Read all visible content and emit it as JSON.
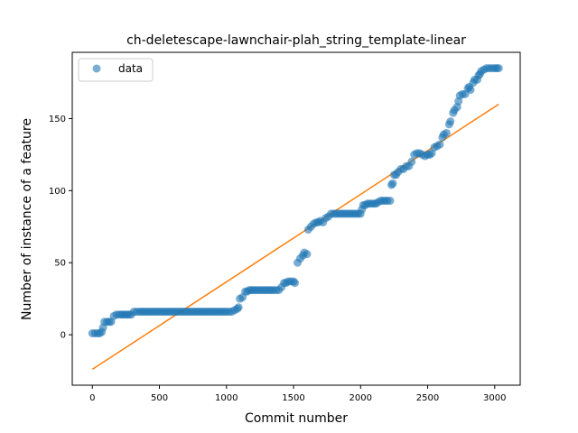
{
  "chart_data": {
    "type": "scatter",
    "title": "ch-deletescape-lawnchair-plah_string_template-linear",
    "xlabel": "Commit number",
    "ylabel": "Number of instance of a feature",
    "xlim": [
      -150,
      3190
    ],
    "ylim": [
      -35,
      196
    ],
    "xticks": [
      0,
      500,
      1000,
      1500,
      2000,
      2500,
      3000
    ],
    "yticks": [
      0,
      50,
      100,
      150
    ],
    "legend": {
      "position": "top-left",
      "entries": [
        "data"
      ]
    },
    "colors": {
      "data": "#1f77b4",
      "fit": "#ff7f0e"
    },
    "series": [
      {
        "name": "data",
        "kind": "scatter",
        "points": [
          [
            0,
            1
          ],
          [
            20,
            1
          ],
          [
            40,
            1
          ],
          [
            55,
            1
          ],
          [
            70,
            2
          ],
          [
            80,
            5
          ],
          [
            90,
            9
          ],
          [
            110,
            9
          ],
          [
            140,
            9
          ],
          [
            160,
            13
          ],
          [
            180,
            14
          ],
          [
            200,
            14
          ],
          [
            230,
            14
          ],
          [
            260,
            14
          ],
          [
            290,
            14
          ],
          [
            310,
            16
          ],
          [
            350,
            16
          ],
          [
            400,
            16
          ],
          [
            450,
            16
          ],
          [
            500,
            16
          ],
          [
            550,
            16
          ],
          [
            600,
            16
          ],
          [
            650,
            16
          ],
          [
            700,
            16
          ],
          [
            750,
            16
          ],
          [
            800,
            16
          ],
          [
            850,
            16
          ],
          [
            900,
            16
          ],
          [
            950,
            16
          ],
          [
            1000,
            16
          ],
          [
            1040,
            16
          ],
          [
            1060,
            17
          ],
          [
            1080,
            18
          ],
          [
            1090,
            19
          ],
          [
            1100,
            25
          ],
          [
            1120,
            26
          ],
          [
            1140,
            30
          ],
          [
            1170,
            31
          ],
          [
            1200,
            31
          ],
          [
            1250,
            31
          ],
          [
            1300,
            31
          ],
          [
            1350,
            31
          ],
          [
            1390,
            31
          ],
          [
            1410,
            33
          ],
          [
            1430,
            36
          ],
          [
            1460,
            37
          ],
          [
            1480,
            37
          ],
          [
            1500,
            37
          ],
          [
            1510,
            36
          ],
          [
            1530,
            50
          ],
          [
            1550,
            53
          ],
          [
            1570,
            55
          ],
          [
            1580,
            57
          ],
          [
            1600,
            56
          ],
          [
            1610,
            73
          ],
          [
            1630,
            75
          ],
          [
            1650,
            77
          ],
          [
            1670,
            78
          ],
          [
            1700,
            79
          ],
          [
            1720,
            78
          ],
          [
            1740,
            81
          ],
          [
            1760,
            82
          ],
          [
            1780,
            84
          ],
          [
            1800,
            84
          ],
          [
            1850,
            84
          ],
          [
            1900,
            84
          ],
          [
            1950,
            84
          ],
          [
            2000,
            84
          ],
          [
            2010,
            87
          ],
          [
            2020,
            90
          ],
          [
            2050,
            91
          ],
          [
            2100,
            91
          ],
          [
            2130,
            92
          ],
          [
            2150,
            93
          ],
          [
            2200,
            93
          ],
          [
            2220,
            93
          ],
          [
            2230,
            104
          ],
          [
            2240,
            105
          ],
          [
            2250,
            111
          ],
          [
            2280,
            113
          ],
          [
            2300,
            115
          ],
          [
            2340,
            117
          ],
          [
            2360,
            117
          ],
          [
            2380,
            120
          ],
          [
            2400,
            125
          ],
          [
            2420,
            126
          ],
          [
            2440,
            126
          ],
          [
            2460,
            125
          ],
          [
            2480,
            124
          ],
          [
            2500,
            125
          ],
          [
            2530,
            126
          ],
          [
            2550,
            130
          ],
          [
            2570,
            131
          ],
          [
            2590,
            132
          ],
          [
            2610,
            137
          ],
          [
            2620,
            139
          ],
          [
            2640,
            140
          ],
          [
            2660,
            146
          ],
          [
            2670,
            148
          ],
          [
            2690,
            154
          ],
          [
            2700,
            156
          ],
          [
            2720,
            158
          ],
          [
            2730,
            162
          ],
          [
            2740,
            166
          ],
          [
            2760,
            167
          ],
          [
            2780,
            167
          ],
          [
            2800,
            171
          ],
          [
            2810,
            172
          ],
          [
            2820,
            170
          ],
          [
            2840,
            175
          ],
          [
            2850,
            177
          ],
          [
            2870,
            177
          ],
          [
            2880,
            180
          ],
          [
            2890,
            181
          ],
          [
            2900,
            183
          ],
          [
            2920,
            184
          ],
          [
            2940,
            185
          ],
          [
            2960,
            185
          ],
          [
            3000,
            185
          ],
          [
            3030,
            185
          ]
        ]
      },
      {
        "name": "",
        "kind": "line",
        "points": [
          [
            0,
            -24
          ],
          [
            3030,
            160
          ]
        ]
      }
    ]
  }
}
